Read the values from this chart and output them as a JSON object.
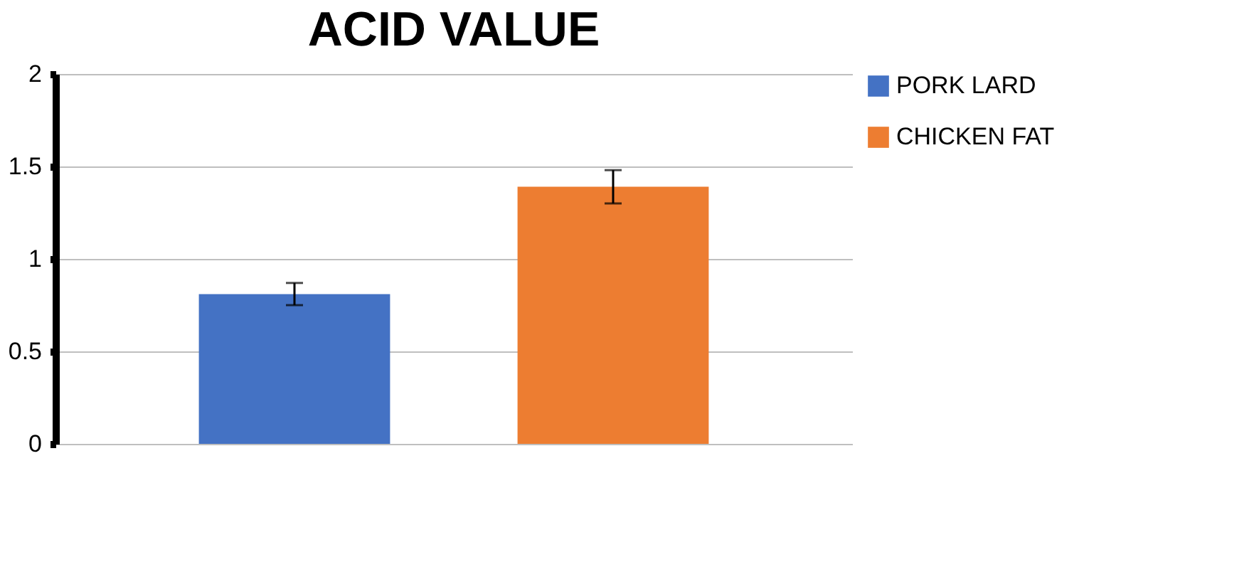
{
  "chart_data": {
    "type": "bar",
    "title": "ACID VALUE",
    "categories": [
      null
    ],
    "series": [
      {
        "name": "PORK LARD",
        "color": "#4472c4",
        "values": [
          0.81
        ],
        "errors": [
          0.06
        ]
      },
      {
        "name": "CHICKEN FAT",
        "color": "#ed7d31",
        "values": [
          1.39
        ],
        "errors": [
          0.09
        ]
      }
    ],
    "ylim": [
      0,
      2
    ],
    "yticks": [
      0,
      0.5,
      1,
      1.5,
      2
    ],
    "grid": "y",
    "legend": "right",
    "tick_labels": "y"
  }
}
